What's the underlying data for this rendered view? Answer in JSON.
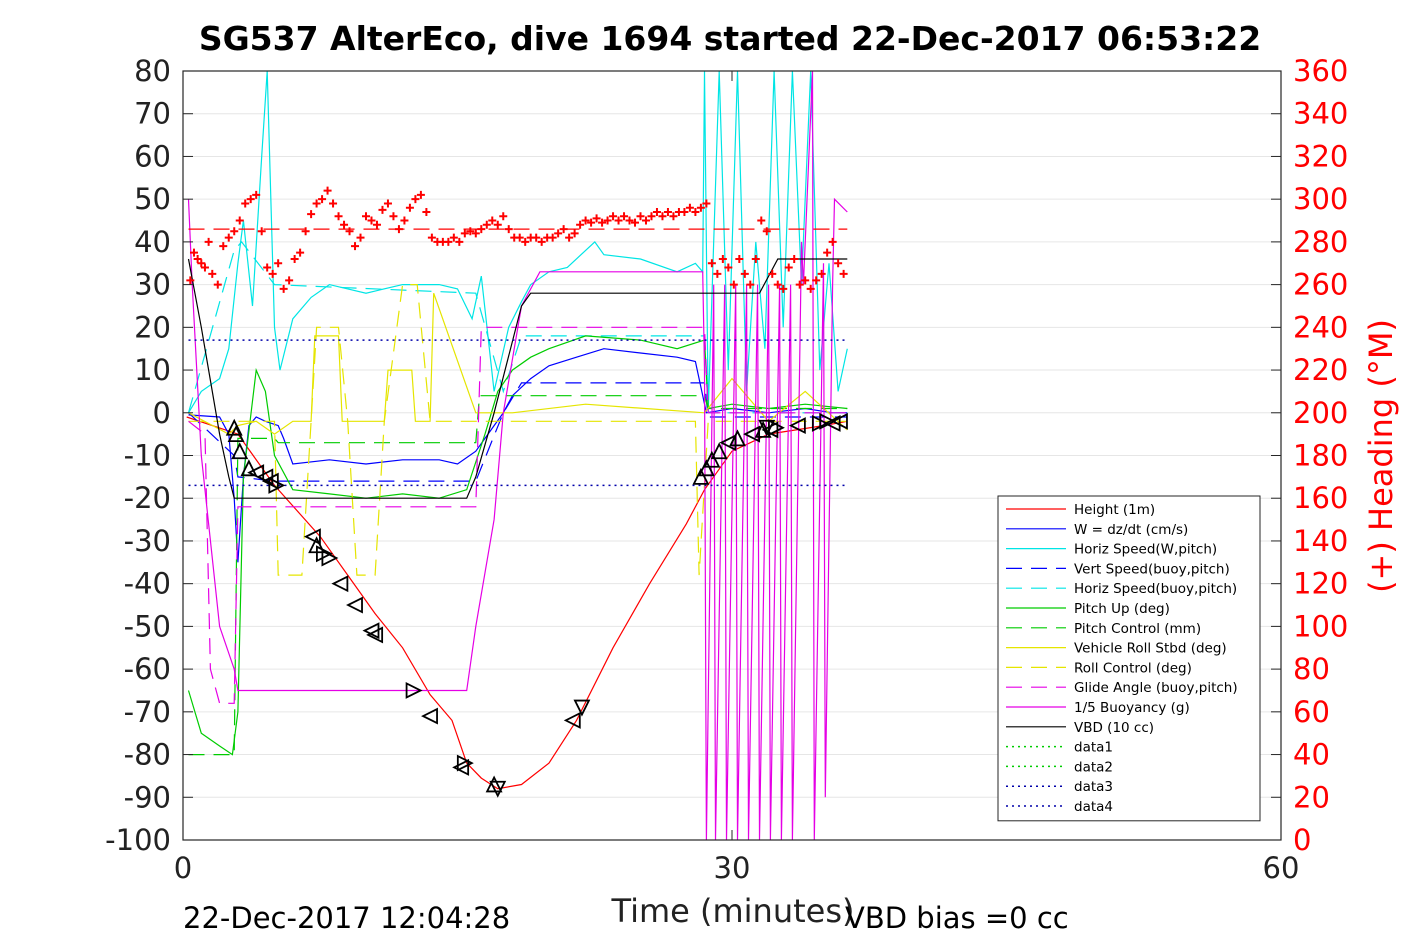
{
  "chart_data": {
    "type": "line",
    "title": "SG537 AlterEco, dive 1694 started 22-Dec-2017 06:53:22",
    "xlabel": "Time (minutes)",
    "ylabel_right": "(+) Heading (°M)",
    "xlim": [
      0,
      60
    ],
    "ylim_left": [
      -100,
      80
    ],
    "ylim_right": [
      0,
      360
    ],
    "x_ticks": [
      "0",
      "30",
      "60"
    ],
    "y_ticks_left": [
      "80",
      "70",
      "60",
      "50",
      "40",
      "30",
      "20",
      "10",
      "0",
      "-10",
      "-20",
      "-30",
      "-40",
      "-50",
      "-60",
      "-70",
      "-80",
      "-90",
      "-100"
    ],
    "y_ticks_right": [
      "360",
      "340",
      "320",
      "300",
      "280",
      "260",
      "240",
      "220",
      "200",
      "180",
      "160",
      "140",
      "120",
      "100",
      "80",
      "60",
      "40",
      "20",
      "0"
    ],
    "grid": "horizontal",
    "legend_position": "bottom-right",
    "footer_left": "22-Dec-2017 12:04:28",
    "footer_right": "VBD bias =0 cc",
    "legend": [
      {
        "name": "Height (1m)",
        "color": "#ff0000",
        "dash": "solid"
      },
      {
        "name": "W = dz/dt (cm/s)",
        "color": "#0000ff",
        "dash": "solid"
      },
      {
        "name": "Horiz Speed(W,pitch)",
        "color": "#00e5e5",
        "dash": "solid"
      },
      {
        "name": "Vert Speed(buoy,pitch)",
        "color": "#0000ff",
        "dash": "dashed"
      },
      {
        "name": "Horiz Speed(buoy,pitch)",
        "color": "#00e5e5",
        "dash": "dashed"
      },
      {
        "name": "Pitch Up (deg)",
        "color": "#00cc00",
        "dash": "solid"
      },
      {
        "name": "Pitch Control (mm)",
        "color": "#00cc00",
        "dash": "dashed"
      },
      {
        "name": "Vehicle Roll Stbd (deg)",
        "color": "#e5e500",
        "dash": "solid"
      },
      {
        "name": "Roll Control (deg)",
        "color": "#e5e500",
        "dash": "dashed"
      },
      {
        "name": "Glide Angle (buoy,pitch)",
        "color": "#e500e5",
        "dash": "dashed"
      },
      {
        "name": "1/5 Buoyancy (g)",
        "color": "#e500e5",
        "dash": "solid"
      },
      {
        "name": "VBD (10 cc)",
        "color": "#000000",
        "dash": "solid"
      },
      {
        "name": "data1",
        "color": "#00cc00",
        "dash": "dotted"
      },
      {
        "name": "data2",
        "color": "#00cc00",
        "dash": "dotted"
      },
      {
        "name": "data3",
        "color": "#0000aa",
        "dash": "dotted"
      },
      {
        "name": "data4",
        "color": "#0000aa",
        "dash": "dotted"
      }
    ],
    "series": [
      {
        "name": "Height (1m)",
        "color": "#ff0000",
        "dash": "solid",
        "x": [
          0.2,
          3.0,
          5.0,
          7.5,
          9.0,
          10.5,
          12.0,
          13.5,
          14.7,
          15.5,
          16.3,
          17.2,
          18.5,
          20.0,
          21.5,
          23.5,
          25.5,
          27.5,
          28.5,
          30.0,
          31.0,
          32.0,
          33.5,
          35.0,
          36.3
        ],
        "y": [
          -1,
          -5,
          -17,
          -29,
          -38,
          -47,
          -55,
          -66,
          -72,
          -82,
          -85.5,
          -88,
          -87,
          -82,
          -72,
          -55,
          -40,
          -26,
          -18,
          -9,
          -7,
          -5,
          -4,
          -3,
          -2
        ]
      },
      {
        "name": "W = dz/dt (cm/s)",
        "color": "#0000ff",
        "dash": "solid",
        "x": [
          0.3,
          2.0,
          2.5,
          2.8,
          3.0,
          3.3,
          3.6,
          4.0,
          4.5,
          5.2,
          5.5,
          6.0,
          8.0,
          10.0,
          12.0,
          14.0,
          15.0,
          16.0,
          17.0,
          17.5,
          18.0,
          19.0,
          20.0,
          21.5,
          23.0,
          25.0,
          27.0,
          28.0,
          28.6,
          30.0,
          32.0,
          34.0,
          35.5,
          36.3
        ],
        "y": [
          -0.5,
          -1,
          -5,
          -20,
          -35,
          -15,
          -3,
          -1,
          -2,
          -3,
          -6,
          -12,
          -11,
          -12,
          -11,
          -11,
          -12,
          -9,
          -3,
          0,
          4,
          8,
          11,
          13,
          15,
          14,
          13,
          12,
          0,
          1,
          0,
          1,
          0,
          0
        ]
      },
      {
        "name": "Horiz Speed(W,pitch)",
        "color": "#00e5e5",
        "dash": "solid",
        "x": [
          0.3,
          1.0,
          2.0,
          2.5,
          3.0,
          3.3,
          3.8,
          4.3,
          4.6,
          5.0,
          5.3,
          6.0,
          7.0,
          8.0,
          10.0,
          12.0,
          14.0,
          15.0,
          15.8,
          16.3,
          17.0,
          17.8,
          18.5,
          19.0,
          20.0,
          21.0,
          22.0,
          22.5,
          23.0,
          25.0,
          27.0,
          28.0,
          28.4,
          28.5,
          28.7,
          29.3,
          29.8,
          30.3,
          30.8,
          31.3,
          31.8,
          32.3,
          32.8,
          33.3,
          33.8,
          34.3,
          34.8,
          35.3,
          35.8,
          36.3
        ],
        "y": [
          0,
          5,
          8,
          15,
          35,
          45,
          25,
          60,
          80,
          20,
          10,
          22,
          27,
          30,
          28,
          30,
          30,
          29,
          22,
          32,
          5,
          20,
          26,
          30,
          33,
          34,
          38,
          40,
          37,
          36,
          33,
          35,
          33,
          80,
          0,
          80,
          10,
          80,
          5,
          40,
          15,
          80,
          20,
          80,
          30,
          80,
          10,
          35,
          5,
          15
        ]
      },
      {
        "name": "Vert Speed(buoy,pitch)",
        "color": "#0000ff",
        "dash": "dashed",
        "x": [
          0.3,
          2.8,
          3.0,
          5.0,
          16.0,
          17.5,
          18.5,
          28.5,
          28.7,
          36.3
        ],
        "y": [
          0,
          -10,
          -15,
          -16,
          -16,
          0,
          7,
          7,
          -1,
          -1
        ]
      },
      {
        "name": "Horiz Speed(buoy,pitch)",
        "color": "#00e5e5",
        "dash": "dashed",
        "x": [
          0.3,
          2.8,
          3.2,
          5.0,
          16.0,
          17.5,
          18.5,
          28.5,
          28.7,
          36.3
        ],
        "y": [
          0,
          38,
          40,
          30,
          28,
          5,
          18,
          18,
          0,
          0
        ]
      },
      {
        "name": "Pitch Up (deg)",
        "color": "#00cc00",
        "dash": "solid",
        "x": [
          0.3,
          1.0,
          2.0,
          2.7,
          3.0,
          3.3,
          4.0,
          4.5,
          5.0,
          6.0,
          8.0,
          10.0,
          12.0,
          14.0,
          15.5,
          16.5,
          17.2,
          18.0,
          19.0,
          20.0,
          22.0,
          25.0,
          27.0,
          28.5,
          28.7,
          30.0,
          32.0,
          34.0,
          36.3
        ],
        "y": [
          -65,
          -75,
          -78,
          -80,
          -70,
          -15,
          10,
          5,
          -10,
          -18,
          -19,
          -20,
          -19,
          -20,
          -18,
          -5,
          5,
          10,
          13,
          15,
          18,
          17,
          15,
          17,
          1,
          2,
          1,
          2,
          1
        ]
      },
      {
        "name": "Pitch Control (mm)",
        "color": "#00cc00",
        "dash": "dashed",
        "x": [
          0.3,
          2.8,
          3.0,
          5.0,
          5.2,
          16.0,
          16.2,
          28.5,
          28.7,
          36.3
        ],
        "y": [
          -80,
          -80,
          -6,
          -6,
          -7,
          -7,
          4,
          4,
          1,
          1
        ]
      },
      {
        "name": "Vehicle Roll Stbd (deg)",
        "color": "#e5e500",
        "dash": "solid",
        "x": [
          0.3,
          2.5,
          3.0,
          4.0,
          5.0,
          6.0,
          7.0,
          7.2,
          8.5,
          8.7,
          11.0,
          11.2,
          12.5,
          12.7,
          13.5,
          13.7,
          16.0,
          18.0,
          22.0,
          28.5,
          30.0,
          32.0,
          34.0,
          36.3
        ],
        "y": [
          0,
          -5,
          -3,
          -2,
          -5,
          -2,
          -2,
          18,
          18,
          -2,
          -2,
          10,
          10,
          -2,
          -2,
          28,
          0,
          0,
          2,
          0,
          8,
          -2,
          5,
          -4
        ]
      },
      {
        "name": "Roll Control (deg)",
        "color": "#e5e500",
        "dash": "dashed",
        "x": [
          0.3,
          5.0,
          5.2,
          6.5,
          7.0,
          7.3,
          8.5,
          9.0,
          9.5,
          10.5,
          11.0,
          12.0,
          12.8,
          13.5,
          15.0,
          28.0,
          28.2,
          28.7,
          36.3
        ],
        "y": [
          -2,
          -2,
          -38,
          -38,
          -2,
          20,
          20,
          -2,
          -38,
          -38,
          -2,
          30,
          30,
          -2,
          -2,
          -2,
          -38,
          -2,
          -2
        ]
      },
      {
        "name": "Glide Angle (buoy,pitch)",
        "color": "#e500e5",
        "dash": "dashed",
        "x": [
          0.3,
          1.2,
          1.5,
          2.0,
          2.8,
          3.0,
          5.0,
          16.0,
          16.3,
          28.5,
          28.7,
          36.3
        ],
        "y": [
          -2,
          -5,
          -60,
          -68,
          -68,
          -22,
          -22,
          -22,
          20,
          20,
          0,
          0
        ]
      },
      {
        "name": "1/5 Buoyancy (g)",
        "color": "#e500e5",
        "dash": "solid",
        "x": [
          0.3,
          0.5,
          1.0,
          2.0,
          2.8,
          3.0,
          15.5,
          16.0,
          17.0,
          17.5,
          18.5,
          19.5,
          28.4,
          28.5,
          28.6,
          29.0,
          29.1,
          29.6,
          29.7,
          30.2,
          30.3,
          30.8,
          30.9,
          31.4,
          31.5,
          32.0,
          32.1,
          32.6,
          32.7,
          33.2,
          33.3,
          33.8,
          33.9,
          34.4,
          34.5,
          35.0,
          35.1,
          35.5,
          35.6,
          36.3
        ],
        "y": [
          50,
          30,
          -10,
          -50,
          -60,
          -65,
          -65,
          -50,
          -25,
          0,
          25,
          33,
          33,
          10,
          -100,
          30,
          -100,
          30,
          -100,
          30,
          -100,
          30,
          -100,
          30,
          -100,
          30,
          -100,
          30,
          -100,
          30,
          -100,
          40,
          30,
          80,
          -100,
          35,
          -90,
          30,
          50,
          47
        ]
      },
      {
        "name": "VBD (10 cc)",
        "color": "#000000",
        "dash": "solid",
        "x": [
          0.3,
          1.0,
          2.0,
          2.5,
          2.8,
          15.0,
          15.5,
          16.0,
          17.0,
          18.5,
          19.0,
          28.5,
          28.6,
          31.5,
          32.5,
          36.3
        ],
        "y": [
          36,
          20,
          -5,
          -15,
          -20,
          -20,
          -20,
          -15,
          0,
          25,
          28,
          28,
          28,
          28,
          36,
          36
        ]
      },
      {
        "name": "data3",
        "color": "#0000aa",
        "dash": "dotted",
        "x": [
          0.3,
          36.3
        ],
        "y": [
          17,
          17
        ]
      },
      {
        "name": "data4",
        "color": "#0000aa",
        "dash": "dotted",
        "x": [
          0.3,
          36.3
        ],
        "y": [
          -17,
          -17
        ]
      },
      {
        "name": "Heading mean",
        "color": "#ff0000",
        "dash": "dashed",
        "x": [
          0.3,
          36.3
        ],
        "y": [
          43,
          43
        ]
      }
    ],
    "heading_points": {
      "color": "#ff0000",
      "x": [
        0.4,
        0.6,
        0.8,
        1.0,
        1.2,
        1.4,
        1.6,
        1.9,
        2.2,
        2.5,
        2.8,
        3.1,
        3.4,
        3.7,
        4.0,
        4.3,
        4.6,
        4.9,
        5.2,
        5.5,
        5.8,
        6.1,
        6.4,
        6.7,
        7.0,
        7.3,
        7.6,
        7.9,
        8.2,
        8.5,
        8.8,
        9.1,
        9.4,
        9.7,
        10.0,
        10.3,
        10.6,
        10.9,
        11.2,
        11.5,
        11.8,
        12.1,
        12.4,
        12.7,
        13.0,
        13.3,
        13.6,
        13.9,
        14.2,
        14.5,
        14.8,
        15.1,
        15.4,
        15.7,
        16.0,
        16.3,
        16.6,
        16.9,
        17.2,
        17.5,
        17.8,
        18.1,
        18.4,
        18.7,
        19.0,
        19.3,
        19.6,
        19.9,
        20.2,
        20.5,
        20.8,
        21.1,
        21.4,
        21.7,
        22.0,
        22.3,
        22.6,
        22.9,
        23.2,
        23.5,
        23.8,
        24.1,
        24.4,
        24.7,
        25.0,
        25.3,
        25.6,
        25.9,
        26.2,
        26.5,
        26.8,
        27.1,
        27.4,
        27.7,
        28.0,
        28.3,
        28.6,
        28.9,
        29.2,
        29.5,
        29.8,
        30.1,
        30.4,
        30.7,
        31.0,
        31.3,
        31.6,
        31.9,
        32.2,
        32.5,
        32.8,
        33.1,
        33.4,
        33.7,
        34.0,
        34.3,
        34.6,
        34.9,
        35.2,
        35.5,
        35.8,
        36.1
      ],
      "y": [
        262,
        275,
        272,
        270,
        268,
        280,
        265,
        260,
        278,
        282,
        285,
        290,
        298,
        300,
        302,
        285,
        268,
        265,
        270,
        258,
        262,
        272,
        275,
        285,
        293,
        298,
        300,
        304,
        298,
        292,
        288,
        285,
        278,
        282,
        292,
        290,
        288,
        295,
        298,
        292,
        286,
        290,
        296,
        300,
        302,
        294,
        282,
        280,
        280,
        280,
        282,
        280,
        284,
        285,
        284,
        286,
        288,
        290,
        288,
        292,
        286,
        282,
        282,
        280,
        282,
        282,
        280,
        282,
        282,
        284,
        286,
        282,
        284,
        288,
        290,
        289,
        291,
        289,
        290,
        292,
        290,
        292,
        290,
        289,
        292,
        290,
        292,
        294,
        292,
        294,
        292,
        294,
        294,
        296,
        294,
        296,
        298,
        270,
        265,
        272,
        268,
        260,
        272,
        265,
        260,
        272,
        290,
        285,
        265,
        260,
        258,
        268,
        272,
        260,
        262,
        258,
        262,
        265,
        275,
        280,
        270,
        265
      ]
    },
    "triangle_points": {
      "x": [
        2.8,
        2.9,
        3.1,
        3.6,
        4.0,
        4.5,
        4.8,
        5.1,
        7.1,
        7.3,
        7.7,
        8.0,
        8.6,
        9.4,
        10.3,
        10.5,
        12.6,
        13.5,
        15.2,
        15.4,
        17.0,
        17.2,
        21.3,
        21.8,
        28.3,
        28.6,
        28.9,
        29.3,
        29.8,
        30.3,
        31.1,
        31.7,
        31.9,
        32.1,
        32.4,
        33.6,
        34.8,
        35.2,
        35.5,
        35.9
      ],
      "y": [
        -3.5,
        -5,
        -9,
        -13,
        -14,
        -15,
        -16,
        -17,
        -29,
        -31,
        -33,
        -34,
        -40,
        -45,
        -51,
        -52,
        -65,
        -71,
        -83,
        -82,
        -87,
        -88,
        -72,
        -69,
        -15,
        -13,
        -11,
        -9,
        -7,
        -6,
        -5,
        -4,
        -3.5,
        -4,
        -3.5,
        -3,
        -2.5,
        -2,
        -2.5,
        -2
      ],
      "orient": [
        "up",
        "up",
        "up",
        "up",
        "left",
        "left",
        "left",
        "right",
        "left",
        "up",
        "right",
        "right",
        "left",
        "left",
        "left",
        "left",
        "right",
        "left",
        "left",
        "right",
        "up",
        "down",
        "left",
        "down",
        "up",
        "up",
        "up",
        "up",
        "left",
        "up",
        "left",
        "up",
        "down",
        "left",
        "right",
        "left",
        "right",
        "right",
        "left",
        "left"
      ]
    }
  }
}
